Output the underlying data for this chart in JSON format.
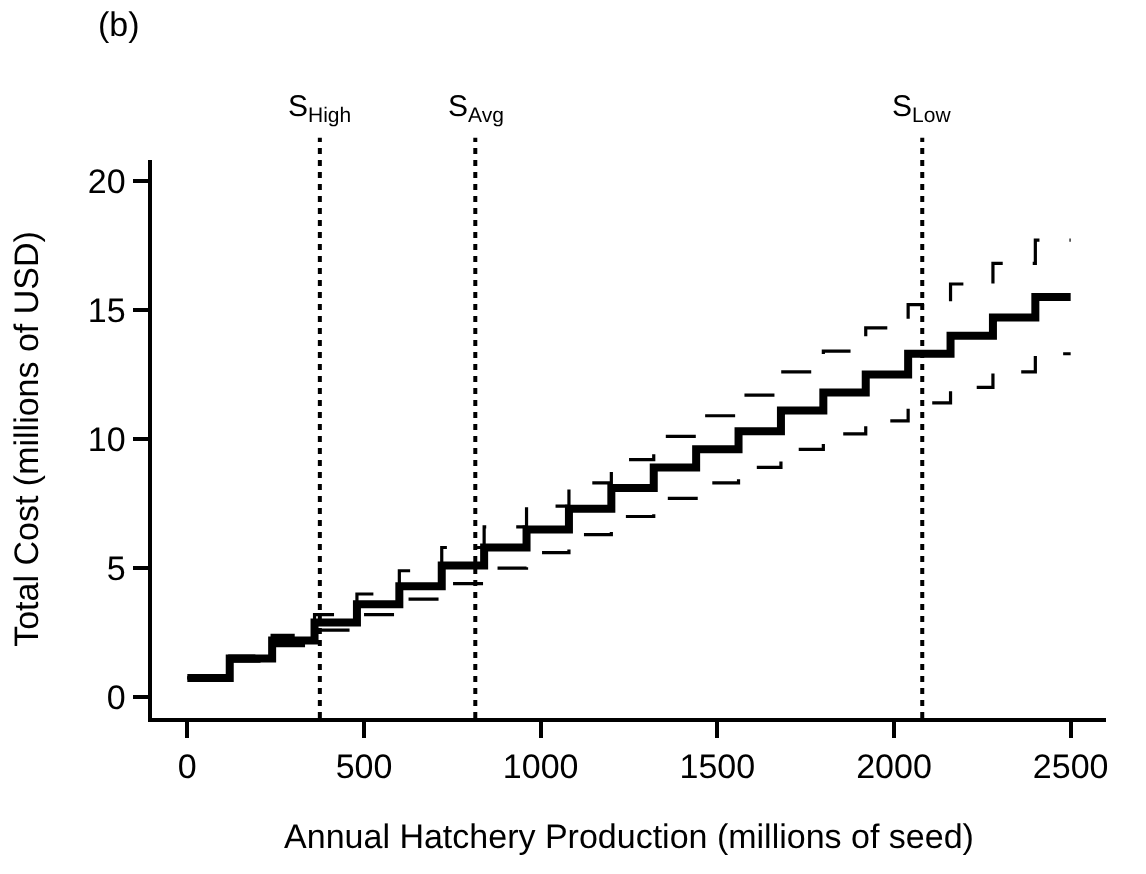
{
  "chart_data": {
    "type": "step",
    "xlabel": "Annual Hatchery Production (millions of seed)",
    "ylabel": "Total Cost (millions of USD)",
    "annotations": [
      "(b)"
    ],
    "x": [
      0,
      120,
      240,
      360,
      480,
      600,
      720,
      840,
      960,
      1080,
      1200,
      1320,
      1440,
      1560,
      1680,
      1800,
      1920,
      2040,
      2160,
      2280,
      2400,
      2500
    ],
    "series": [
      {
        "color": "#000000",
        "line_style": "dashed",
        "values": [
          0.75,
          1.6,
          2.4,
          3.2,
          4.0,
          4.9,
          5.8,
          6.6,
          7.4,
          8.3,
          9.2,
          10.1,
          10.9,
          11.7,
          12.6,
          13.4,
          14.3,
          15.2,
          16.0,
          16.8,
          17.7,
          17.7
        ]
      },
      {
        "color": "#000000",
        "line_style": "dashed",
        "values": [
          0.75,
          1.4,
          2.0,
          2.6,
          3.2,
          3.8,
          4.4,
          5.0,
          5.6,
          6.3,
          7.0,
          7.7,
          8.3,
          8.9,
          9.6,
          10.2,
          10.7,
          11.4,
          12.0,
          12.6,
          13.3,
          13.3
        ]
      },
      {
        "color": "#000000",
        "line_style": "solid",
        "values": [
          0.75,
          1.5,
          2.2,
          2.9,
          3.6,
          4.3,
          5.1,
          5.8,
          6.5,
          7.3,
          8.1,
          8.9,
          9.6,
          10.3,
          11.1,
          11.8,
          12.5,
          13.3,
          14.0,
          14.7,
          15.5,
          15.5
        ]
      }
    ],
    "ref_lines": [
      {
        "axis": "x",
        "value": 375,
        "label": "S$_{High}$",
        "color": "#000000",
        "line_style": "dotted"
      },
      {
        "axis": "x",
        "value": 815,
        "label": "S$_{Avg}$",
        "color": "#000000",
        "line_style": "dotted"
      },
      {
        "axis": "x",
        "value": 2080,
        "label": "S$_{Low}$",
        "color": "#000000",
        "line_style": "dotted"
      }
    ],
    "xlim": [
      -100,
      2600
    ],
    "xticks": [
      0,
      500,
      1000,
      1500,
      2000,
      2500
    ],
    "ylim": [
      -0.8,
      20.8
    ],
    "yticks": [
      0,
      5,
      10,
      15,
      20
    ],
    "tick_labels": "xy"
  }
}
